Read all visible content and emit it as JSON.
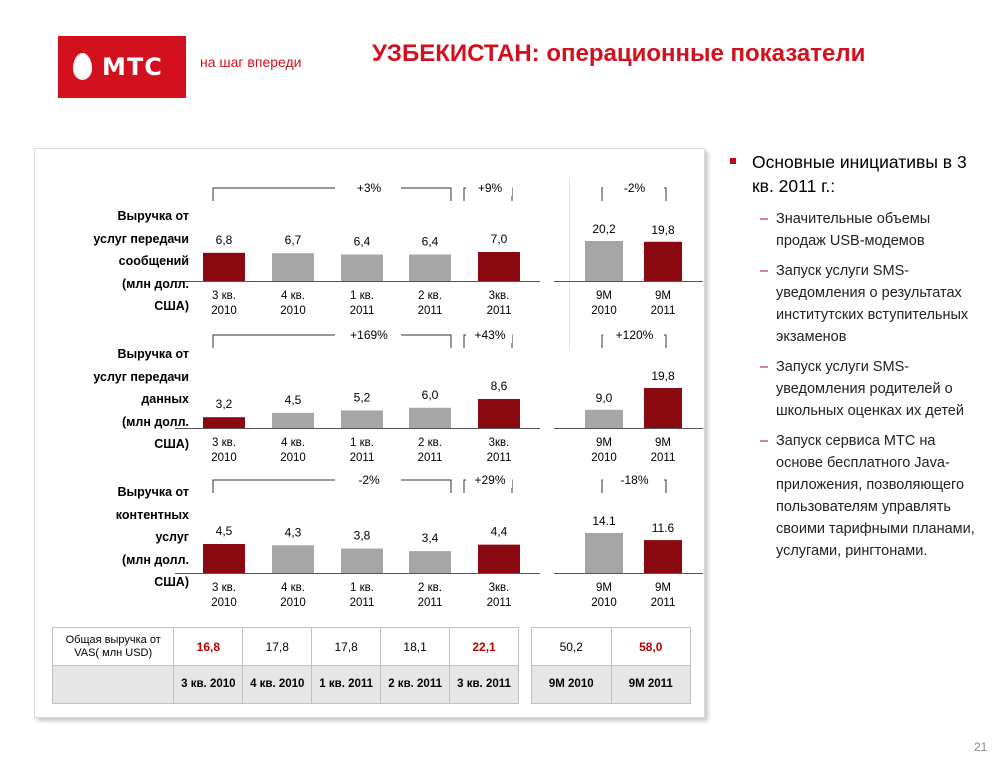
{
  "header": {
    "logo_text": "МТС",
    "slogan": "на шаг впереди",
    "title": "УЗБЕКИСТАН: операционные показатели"
  },
  "chart_data": [
    {
      "type": "bar",
      "title": "Выручка от услуг передачи сообщений (млн долл. США)",
      "categories": [
        "3 кв. 2010",
        "4 кв. 2010",
        "1 кв. 2011",
        "2 кв. 2011",
        "3кв. 2011"
      ],
      "values": [
        6.8,
        6.7,
        6.4,
        6.4,
        7.0
      ],
      "value_labels": [
        "6,8",
        "6,7",
        "6,4",
        "6,4",
        "7,0"
      ],
      "highlight": [
        true,
        false,
        false,
        false,
        true
      ],
      "growth": [
        {
          "label": "+3%"
        },
        {
          "label": "+9%"
        }
      ],
      "ninem": {
        "categories": [
          "9М 2010",
          "9М 2011"
        ],
        "values": [
          20.2,
          19.8
        ],
        "value_labels": [
          "20,2",
          "19,8"
        ],
        "highlight": [
          false,
          true
        ],
        "growth": "-2%"
      }
    },
    {
      "type": "bar",
      "title": "Выручка от услуг передачи данных (млн долл. США)",
      "categories": [
        "3 кв. 2010",
        "4 кв. 2010",
        "1 кв. 2011",
        "2 кв. 2011",
        "3кв. 2011"
      ],
      "values": [
        3.2,
        4.5,
        5.2,
        6.0,
        8.6
      ],
      "value_labels": [
        "3,2",
        "4,5",
        "5,2",
        "6,0",
        "8,6"
      ],
      "highlight": [
        true,
        false,
        false,
        false,
        true
      ],
      "growth": [
        {
          "label": "+169%"
        },
        {
          "label": "+43%"
        }
      ],
      "ninem": {
        "categories": [
          "9М 2010",
          "9М 2011"
        ],
        "values": [
          9.0,
          19.8
        ],
        "value_labels": [
          "9,0",
          "19,8"
        ],
        "highlight": [
          false,
          true
        ],
        "growth": "+120%"
      }
    },
    {
      "type": "bar",
      "title": "Выручка от контентных услуг (млн долл. США)",
      "categories": [
        "3 кв. 2010",
        "4 кв. 2010",
        "1 кв. 2011",
        "2 кв. 2011",
        "3кв. 2011"
      ],
      "values": [
        4.5,
        4.3,
        3.8,
        3.4,
        4.4
      ],
      "value_labels": [
        "4,5",
        "4,3",
        "3,8",
        "3,4",
        "4,4"
      ],
      "highlight": [
        true,
        false,
        false,
        false,
        true
      ],
      "growth": [
        {
          "label": "-2%"
        },
        {
          "label": "+29%"
        }
      ],
      "ninem": {
        "categories": [
          "9М 2010",
          "9М 2011"
        ],
        "values": [
          14.1,
          11.6
        ],
        "value_labels": [
          "14.1",
          "11.6"
        ],
        "highlight": [
          false,
          true
        ],
        "growth": "-18%"
      }
    }
  ],
  "labels": [
    {
      "lines": [
        "Выручка от",
        "услуг передачи",
        "сообщений",
        "(млн долл.",
        "США)"
      ]
    },
    {
      "lines": [
        "Выручка от",
        "услуг передачи",
        "данных",
        "(млн долл.",
        "США)"
      ]
    },
    {
      "lines": [
        "Выручка от",
        "контентных",
        "услуг",
        "(млн долл.",
        "США)"
      ]
    }
  ],
  "table": {
    "caption": "Общая выручка от VAS( млн USD)",
    "quarter_values": [
      "16,8",
      "17,8",
      "17,8",
      "18,1",
      "22,1"
    ],
    "quarter_highlight": [
      true,
      false,
      false,
      false,
      true
    ],
    "quarter_periods": [
      "3 кв. 2010",
      "4 кв. 2010",
      "1 кв. 2011",
      "2 кв. 2011",
      "3 кв. 2011"
    ],
    "ninem_values": [
      "50,2",
      "58,0"
    ],
    "ninem_highlight": [
      false,
      true
    ],
    "ninem_periods": [
      "9М 2010",
      "9М 2011"
    ]
  },
  "initiatives": {
    "heading": "Основные инициативы в 3 кв. 2011 г.:",
    "items": [
      "Значительные объемы продаж USB-модемов",
      "Запуск услуги SMS-уведомления о результатах институтских вступительных экзаменов",
      "Запуск услуги SMS-уведомления родителей о школьных оценках их детей",
      "Запуск сервиса МТС на основе бесплатного Java-приложения, позволяющего пользователям управлять своими тарифными планами, услугами, рингтонами."
    ]
  },
  "page_number": "21",
  "colors": {
    "brand": "#d3101e",
    "highlight_bar": "#8b0a12",
    "grey_bar": "#a6a6a6"
  }
}
